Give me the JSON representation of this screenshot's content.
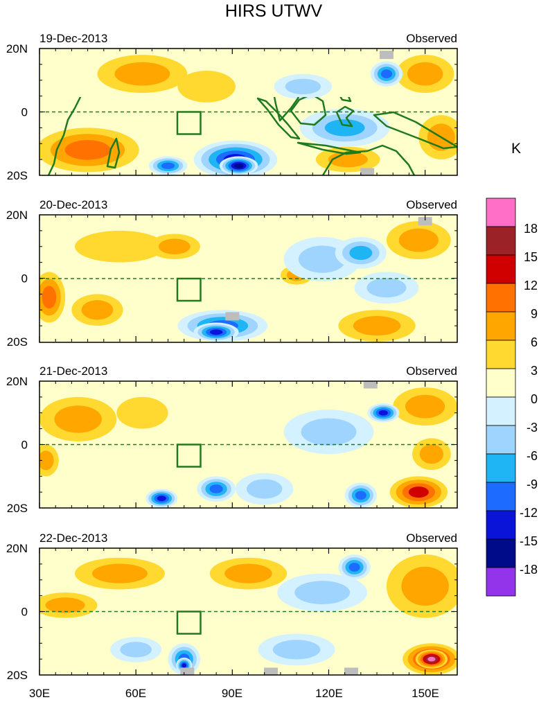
{
  "chart_data": {
    "type": "heatmap",
    "title": "HIRS UTWV",
    "units_label": "K",
    "x_ticks": [
      {
        "value": 30,
        "label": "30E"
      },
      {
        "value": 60,
        "label": "60E"
      },
      {
        "value": 90,
        "label": "90E"
      },
      {
        "value": 120,
        "label": "120E"
      },
      {
        "value": 150,
        "label": "150E"
      }
    ],
    "x_range": [
      30,
      160
    ],
    "y_range": [
      -20,
      20
    ],
    "y_ticks": [
      {
        "value": 20,
        "label": "20N"
      },
      {
        "value": 0,
        "label": "0"
      },
      {
        "value": -20,
        "label": "20S"
      }
    ],
    "colorbar": {
      "labels": [
        "18",
        "15",
        "12",
        "9",
        "6",
        "3",
        "0",
        "-3",
        "-6",
        "-9",
        "-12",
        "-15",
        "-18"
      ],
      "colors": [
        "#ff6ec7",
        "#9b2226",
        "#d00000",
        "#ff7100",
        "#ffa600",
        "#ffd92f",
        "#ffffcc",
        "#d4f1ff",
        "#9fd4ff",
        "#1fb5f5",
        "#1e6cff",
        "#0a14d8",
        "#000b8a",
        "#9333ea"
      ]
    },
    "box": {
      "lon": [
        75,
        80
      ],
      "lat": [
        -7,
        0
      ]
    },
    "panels": [
      {
        "date": "19-Dec-2013",
        "status": "Observed",
        "anomalies": [
          {
            "lon": 62,
            "lat": 12,
            "rx": 14,
            "ry": 6,
            "value": 6
          },
          {
            "lon": 45,
            "lat": -12,
            "rx": 16,
            "ry": 7,
            "value": 9
          },
          {
            "lon": 82,
            "lat": 8,
            "rx": 9,
            "ry": 5,
            "value": 3
          },
          {
            "lon": 150,
            "lat": 12,
            "rx": 9,
            "ry": 6,
            "value": 6
          },
          {
            "lon": 155,
            "lat": -8,
            "rx": 7,
            "ry": 7,
            "value": 6
          },
          {
            "lon": 126,
            "lat": -15,
            "rx": 10,
            "ry": 4,
            "value": 6
          },
          {
            "lon": 91,
            "lat": -15,
            "rx": 13,
            "ry": 6,
            "value": -15
          },
          {
            "lon": 92,
            "lat": -17,
            "rx": 6,
            "ry": 3,
            "value": -18
          },
          {
            "lon": 70,
            "lat": -17,
            "rx": 6,
            "ry": 3,
            "value": -12
          },
          {
            "lon": 138,
            "lat": 12,
            "rx": 5,
            "ry": 4,
            "value": -12
          },
          {
            "lon": 125,
            "lat": -5,
            "rx": 14,
            "ry": 6,
            "value": -9
          },
          {
            "lon": 112,
            "lat": 8,
            "rx": 9,
            "ry": 4,
            "value": -6
          }
        ],
        "missing": [
          {
            "lon": 138,
            "lat": 18
          },
          {
            "lon": 132,
            "lat": -19
          }
        ]
      },
      {
        "date": "20-Dec-2013",
        "status": "Observed",
        "anomalies": [
          {
            "lon": 33,
            "lat": -6,
            "rx": 5,
            "ry": 8,
            "value": 9
          },
          {
            "lon": 55,
            "lat": 10,
            "rx": 14,
            "ry": 5,
            "value": 3
          },
          {
            "lon": 72,
            "lat": 10,
            "rx": 8,
            "ry": 4,
            "value": 6
          },
          {
            "lon": 148,
            "lat": 12,
            "rx": 10,
            "ry": 6,
            "value": 6
          },
          {
            "lon": 110,
            "lat": 1,
            "rx": 5,
            "ry": 3,
            "value": 6
          },
          {
            "lon": 48,
            "lat": -10,
            "rx": 8,
            "ry": 5,
            "value": 6
          },
          {
            "lon": 135,
            "lat": -15,
            "rx": 12,
            "ry": 5,
            "value": 6
          },
          {
            "lon": 87,
            "lat": -15,
            "rx": 14,
            "ry": 5,
            "value": -12
          },
          {
            "lon": 85,
            "lat": -17,
            "rx": 7,
            "ry": 3,
            "value": -15
          },
          {
            "lon": 118,
            "lat": 6,
            "rx": 12,
            "ry": 7,
            "value": -6
          },
          {
            "lon": 130,
            "lat": 8,
            "rx": 8,
            "ry": 5,
            "value": -9
          },
          {
            "lon": 138,
            "lat": -3,
            "rx": 10,
            "ry": 5,
            "value": -6
          }
        ],
        "missing": [
          {
            "lon": 150,
            "lat": 18
          },
          {
            "lon": 90,
            "lat": -12
          }
        ]
      },
      {
        "date": "21-Dec-2013",
        "status": "Observed",
        "anomalies": [
          {
            "lon": 42,
            "lat": 8,
            "rx": 12,
            "ry": 7,
            "value": 6
          },
          {
            "lon": 32,
            "lat": -5,
            "rx": 4,
            "ry": 5,
            "value": 6
          },
          {
            "lon": 62,
            "lat": 10,
            "rx": 8,
            "ry": 5,
            "value": 3
          },
          {
            "lon": 150,
            "lat": 12,
            "rx": 10,
            "ry": 6,
            "value": 6
          },
          {
            "lon": 152,
            "lat": -3,
            "rx": 6,
            "ry": 5,
            "value": 6
          },
          {
            "lon": 148,
            "lat": -15,
            "rx": 9,
            "ry": 5,
            "value": 12
          },
          {
            "lon": 85,
            "lat": -14,
            "rx": 6,
            "ry": 4,
            "value": -12
          },
          {
            "lon": 68,
            "lat": -17,
            "rx": 5,
            "ry": 3,
            "value": -15
          },
          {
            "lon": 137,
            "lat": 10,
            "rx": 5,
            "ry": 3,
            "value": -15
          },
          {
            "lon": 120,
            "lat": 4,
            "rx": 14,
            "ry": 7,
            "value": -6
          },
          {
            "lon": 130,
            "lat": -16,
            "rx": 5,
            "ry": 4,
            "value": -12
          },
          {
            "lon": 100,
            "lat": -14,
            "rx": 9,
            "ry": 5,
            "value": -6
          }
        ],
        "missing": [
          {
            "lon": 133,
            "lat": 19
          }
        ]
      },
      {
        "date": "22-Dec-2013",
        "status": "Observed",
        "anomalies": [
          {
            "lon": 38,
            "lat": 2,
            "rx": 10,
            "ry": 4,
            "value": 6
          },
          {
            "lon": 55,
            "lat": 12,
            "rx": 14,
            "ry": 5,
            "value": 6
          },
          {
            "lon": 95,
            "lat": 12,
            "rx": 12,
            "ry": 5,
            "value": 6
          },
          {
            "lon": 150,
            "lat": 8,
            "rx": 12,
            "ry": 10,
            "value": 6
          },
          {
            "lon": 152,
            "lat": -15,
            "rx": 9,
            "ry": 5,
            "value": 15
          },
          {
            "lon": 152,
            "lat": -15,
            "rx": 5,
            "ry": 3,
            "value": 18
          },
          {
            "lon": 75,
            "lat": -15,
            "rx": 5,
            "ry": 5,
            "value": -12
          },
          {
            "lon": 75,
            "lat": -17,
            "rx": 2.5,
            "ry": 2.5,
            "value": -15
          },
          {
            "lon": 128,
            "lat": 14,
            "rx": 5,
            "ry": 4,
            "value": -12
          },
          {
            "lon": 118,
            "lat": 6,
            "rx": 14,
            "ry": 6,
            "value": -6
          },
          {
            "lon": 110,
            "lat": -12,
            "rx": 12,
            "ry": 5,
            "value": -6
          },
          {
            "lon": 60,
            "lat": -12,
            "rx": 8,
            "ry": 4,
            "value": -6
          }
        ],
        "missing": [
          {
            "lon": 76,
            "lat": -19
          },
          {
            "lon": 102,
            "lat": -19
          },
          {
            "lon": 127,
            "lat": -19
          }
        ]
      }
    ]
  }
}
